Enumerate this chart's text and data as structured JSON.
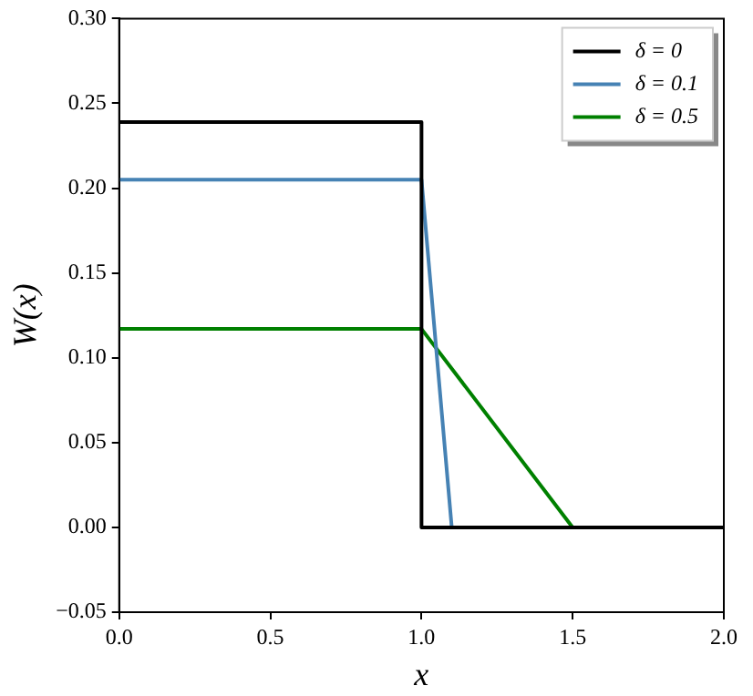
{
  "chart_data": {
    "type": "line",
    "xlabel": "x",
    "ylabel": "W(x)",
    "xlim": [
      0,
      2
    ],
    "xticks": [
      {
        "value": 0,
        "label": "0.0"
      },
      0.5,
      {
        "value": 1,
        "label": "1.0"
      },
      1.5,
      {
        "value": 2,
        "label": "2.0"
      }
    ],
    "ylim": [
      -0.05,
      0.3
    ],
    "yticks": [
      {
        "value": -0.05,
        "label": "−0.05"
      },
      {
        "value": 0,
        "label": "0.00"
      },
      0.05,
      {
        "value": 0.1,
        "label": "0.10"
      },
      0.15,
      {
        "value": 0.2,
        "label": "0.20"
      },
      0.25,
      {
        "value": 0.3,
        "label": "0.30"
      }
    ],
    "grid": false,
    "legend": "top right",
    "marker": "none",
    "line_style": "solid",
    "series": [
      {
        "name": "δ = 0",
        "color": "#000000",
        "x": [
          0,
          1,
          1,
          2
        ],
        "values": [
          0.239,
          0.239,
          0,
          0
        ]
      },
      {
        "name": "δ = 0.1",
        "color": "#4682b4",
        "x": [
          0,
          1,
          1.1,
          2
        ],
        "values": [
          0.205,
          0.205,
          0,
          0
        ]
      },
      {
        "name": "δ = 0.5",
        "color": "#008000",
        "x": [
          0,
          1,
          1.5,
          2
        ],
        "values": [
          0.117,
          0.117,
          0,
          0
        ]
      }
    ]
  }
}
